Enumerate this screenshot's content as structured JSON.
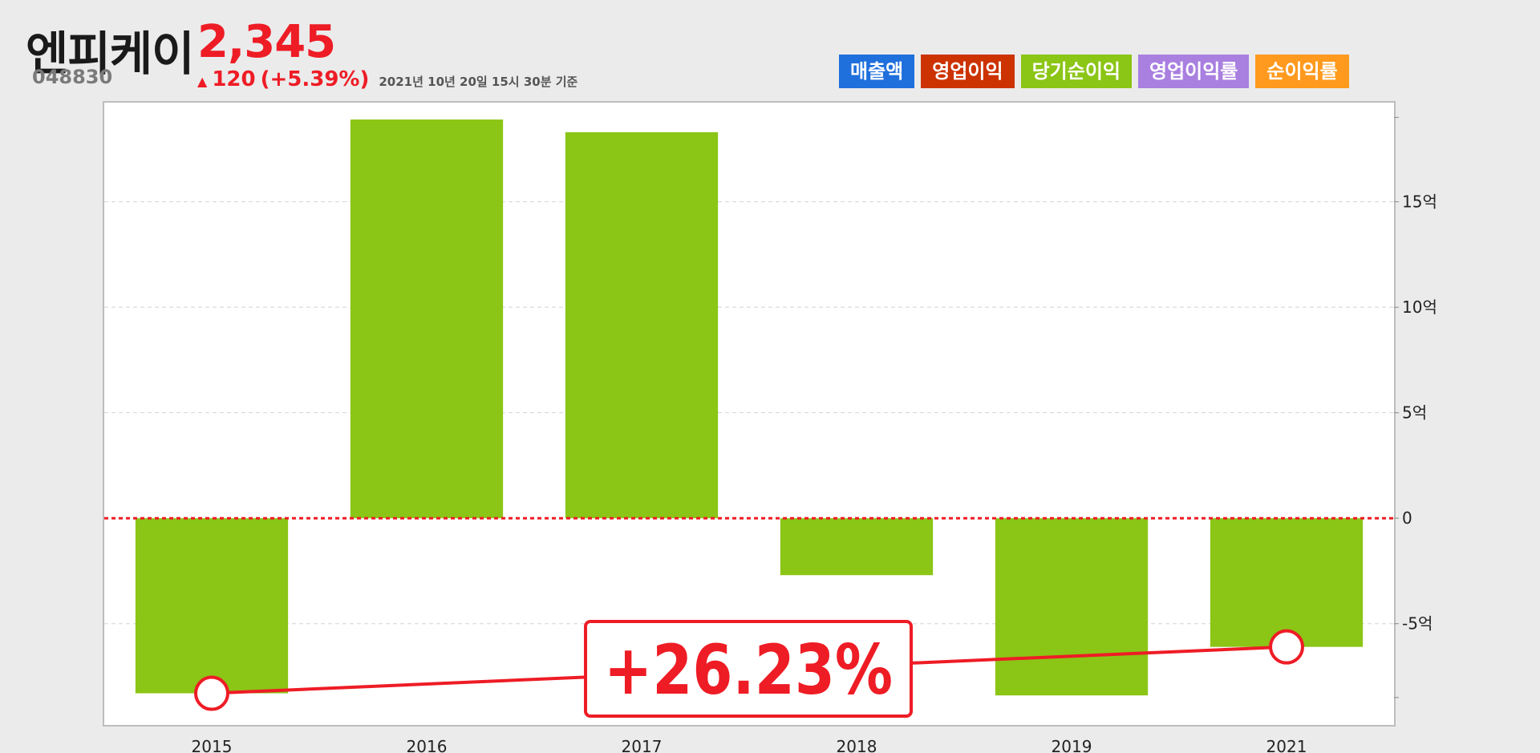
{
  "header": {
    "company_name": "엔피케이",
    "stock_code": "048830",
    "price": "2,345",
    "change_arrow": "▲",
    "change_amount": "120",
    "change_pct": "(+5.39%)",
    "as_of": "2021년 10년 20일 15시 30분 기준"
  },
  "legend": [
    {
      "label": "매출액",
      "color": "#1f6fdc"
    },
    {
      "label": "영업이익",
      "color": "#cc3300"
    },
    {
      "label": "당기순이익",
      "color": "#8bc516"
    },
    {
      "label": "영업이익률",
      "color": "#a97fe0"
    },
    {
      "label": "순이익률",
      "color": "#ff9a1e"
    }
  ],
  "chart_data": {
    "type": "bar",
    "series": [
      {
        "name": "당기순이익",
        "values": [
          -8.3,
          18.9,
          18.3,
          -2.7,
          -8.4,
          -6.1
        ]
      }
    ],
    "categories": [
      "2015",
      "2016",
      "2017",
      "2018",
      "2019",
      "2021"
    ],
    "unit": "억",
    "ylim": [
      -9.8,
      19.7
    ],
    "yticks": [
      -5,
      0,
      5,
      10,
      15
    ],
    "ytick_labels": [
      "-5억",
      "0",
      "5억",
      "10억",
      "15억"
    ],
    "zero_line": {
      "style": "dotted",
      "color": "#ee1c25"
    },
    "bar_color": "#8bc516",
    "grid": true,
    "annotation": {
      "text": "+26.23%",
      "from_category": "2015",
      "to_category": "2021",
      "color": "#ee1c25"
    }
  }
}
